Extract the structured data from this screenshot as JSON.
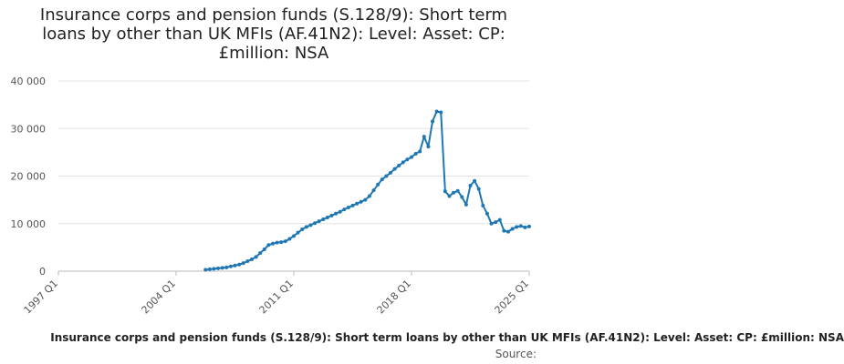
{
  "chart_data": {
    "type": "line",
    "title": "Insurance corps and pension funds (S.128/9): Short term loans by other than UK MFIs (AF.41N2): Level: Asset: CP: £million: NSA",
    "xlabel": "",
    "ylabel": "",
    "ylim": [
      0,
      40000
    ],
    "y_ticks": [
      "0",
      "10 000",
      "20 000",
      "30 000",
      "40 000"
    ],
    "y_tick_values": [
      0,
      10000,
      20000,
      30000,
      40000
    ],
    "x_ticks": [
      "1997 Q1",
      "2004 Q1",
      "2011 Q1",
      "2018 Q1",
      "2025 Q1"
    ],
    "x_tick_values": [
      1997.0,
      2004.0,
      2011.0,
      2018.0,
      2025.0
    ],
    "xlim": [
      1997.0,
      2025.0
    ],
    "grid": true,
    "line_color": "#1f77b4",
    "series": [
      {
        "name": "Insurance corps and pension funds (S.128/9): Short term loans by other than UK MFIs (AF.41N2): Level: Asset: CP: £million: NSA",
        "x": [
          2005.75,
          2006.0,
          2006.25,
          2006.5,
          2006.75,
          2007.0,
          2007.25,
          2007.5,
          2007.75,
          2008.0,
          2008.25,
          2008.5,
          2008.75,
          2009.0,
          2009.25,
          2009.5,
          2009.75,
          2010.0,
          2010.25,
          2010.5,
          2010.75,
          2011.0,
          2011.25,
          2011.5,
          2011.75,
          2012.0,
          2012.25,
          2012.5,
          2012.75,
          2013.0,
          2013.25,
          2013.5,
          2013.75,
          2014.0,
          2014.25,
          2014.5,
          2014.75,
          2015.0,
          2015.25,
          2015.5,
          2015.75,
          2016.0,
          2016.25,
          2016.5,
          2016.75,
          2017.0,
          2017.25,
          2017.5,
          2017.75,
          2018.0,
          2018.25,
          2018.5,
          2018.75,
          2019.0,
          2019.25,
          2019.5,
          2019.75,
          2020.0,
          2020.25,
          2020.5,
          2020.75,
          2021.0,
          2021.25,
          2021.5,
          2021.75,
          2022.0,
          2022.25,
          2022.5,
          2022.75,
          2023.0,
          2023.25,
          2023.5,
          2023.75,
          2024.0,
          2024.25,
          2024.5,
          2024.75,
          2025.0
        ],
        "values": [
          300,
          400,
          500,
          600,
          700,
          800,
          1000,
          1200,
          1400,
          1700,
          2100,
          2500,
          3000,
          3800,
          4600,
          5500,
          5800,
          6000,
          6100,
          6300,
          6800,
          7400,
          8100,
          8800,
          9300,
          9700,
          10100,
          10500,
          10900,
          11300,
          11700,
          12100,
          12500,
          13000,
          13400,
          13800,
          14200,
          14600,
          15000,
          15800,
          17000,
          18200,
          19300,
          20000,
          20700,
          21500,
          22200,
          22900,
          23500,
          24000,
          24700,
          25200,
          28300,
          26200,
          31500,
          33600,
          33400,
          16800,
          15800,
          16500,
          16900,
          15600,
          14000,
          18000,
          19000,
          17300,
          13800,
          12100,
          10000,
          10300,
          10800,
          8500,
          8300,
          8900,
          9300,
          9500,
          9200,
          9400
        ]
      }
    ]
  },
  "legend_label": "Insurance corps and pension funds (S.128/9): Short term loans by other than UK MFIs (AF.41N2): Level: Asset: CP: £million: NSA",
  "source_label": "Source: "
}
